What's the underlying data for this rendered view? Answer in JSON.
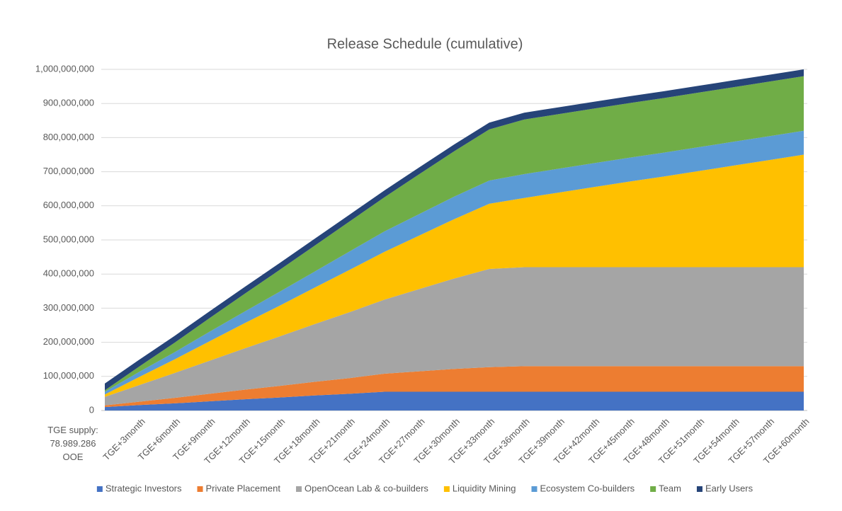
{
  "chart_data": {
    "type": "stacked_area",
    "title": "Release Schedule (cumulative)",
    "categories": [
      "TGE supply: 78.989.286 OOE",
      "TGE+3month",
      "TGE+6month",
      "TGE+9month",
      "TGE+12month",
      "TGE+15month",
      "TGE+18month",
      "TGE+21month",
      "TGE+24month",
      "TGE+27month",
      "TGE+30month",
      "TGE+33month",
      "TGE+36month",
      "TGE+39month",
      "TGE+42month",
      "TGE+45month",
      "TGE+48month",
      "TGE+51month",
      "TGE+54month",
      "TGE+57month",
      "TGE+60month"
    ],
    "series": [
      {
        "name": "Strategic Investors",
        "color": "#4472c4",
        "values": [
          10000000,
          16000000,
          21000000,
          27000000,
          33000000,
          38000000,
          44000000,
          49000000,
          55000000,
          55000000,
          55000000,
          55000000,
          55000000,
          55000000,
          55000000,
          55000000,
          55000000,
          55000000,
          55000000,
          55000000,
          55000000
        ]
      },
      {
        "name": "Private Placement",
        "color": "#ed7d31",
        "values": [
          5000000,
          10000000,
          16000000,
          22000000,
          28000000,
          34000000,
          40000000,
          46000000,
          53000000,
          60000000,
          67000000,
          72000000,
          75000000,
          75000000,
          75000000,
          75000000,
          75000000,
          75000000,
          75000000,
          75000000,
          75000000
        ]
      },
      {
        "name": "OpenOcean Lab & co-builders",
        "color": "#a5a5a5",
        "values": [
          25000000,
          49000000,
          73000000,
          97000000,
          121000000,
          145000000,
          169000000,
          193000000,
          217000000,
          241000000,
          265000000,
          288000000,
          290000000,
          290000000,
          290000000,
          290000000,
          290000000,
          290000000,
          290000000,
          290000000,
          290000000
        ]
      },
      {
        "name": "Liquidity Mining",
        "color": "#ffc000",
        "values": [
          7000000,
          24000000,
          40000000,
          57000000,
          74000000,
          90000000,
          107000000,
          124000000,
          140000000,
          157000000,
          174000000,
          191000000,
          203000000,
          219000000,
          235000000,
          251000000,
          266000000,
          282000000,
          298000000,
          314000000,
          330000000
        ]
      },
      {
        "name": "Ecosystem Co-builders",
        "color": "#5b9bd5",
        "values": [
          8000000,
          15000000,
          21000000,
          28000000,
          34000000,
          41000000,
          47000000,
          54000000,
          60000000,
          63000000,
          66000000,
          68000000,
          70000000,
          70000000,
          70000000,
          70000000,
          70000000,
          70000000,
          70000000,
          70000000,
          70000000
        ]
      },
      {
        "name": "Team",
        "color": "#70ad47",
        "values": [
          4000000,
          16000000,
          28000000,
          40000000,
          52000000,
          64000000,
          76000000,
          88000000,
          100000000,
          117000000,
          133000000,
          150000000,
          160000000,
          160000000,
          160000000,
          160000000,
          160000000,
          160000000,
          160000000,
          160000000,
          160000000
        ]
      },
      {
        "name": "Early Users",
        "color": "#264478",
        "values": [
          20000000,
          20000000,
          20000000,
          20000000,
          20000000,
          20000000,
          20000000,
          20000000,
          20000000,
          20000000,
          20000000,
          20000000,
          20000000,
          20000000,
          20000000,
          20000000,
          20000000,
          20000000,
          20000000,
          20000000,
          20000000
        ]
      }
    ],
    "ylim": [
      0,
      1000000000
    ],
    "yticks": [
      {
        "value": 0,
        "label": "0"
      },
      {
        "value": 100000000,
        "label": "100,000,000"
      },
      {
        "value": 200000000,
        "label": "200,000,000"
      },
      {
        "value": 300000000,
        "label": "300,000,000"
      },
      {
        "value": 400000000,
        "label": "400,000,000"
      },
      {
        "value": 500000000,
        "label": "500,000,000"
      },
      {
        "value": 600000000,
        "label": "600,000,000"
      },
      {
        "value": 700000000,
        "label": "700,000,000"
      },
      {
        "value": 800000000,
        "label": "800,000,000"
      },
      {
        "value": 900000000,
        "label": "900,000,000"
      },
      {
        "value": 1000000000,
        "label": "1,000,000,000"
      }
    ],
    "grid": true,
    "legend": "bottom"
  }
}
